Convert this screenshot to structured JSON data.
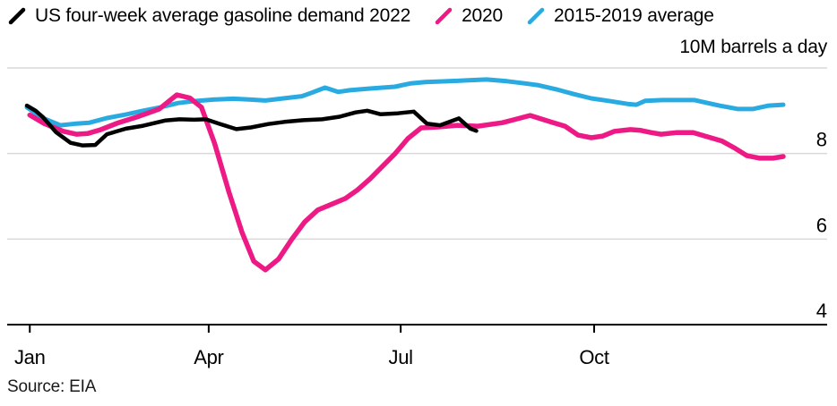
{
  "labels": {
    "unit": "10M barrels a day",
    "source": "Source: EIA"
  },
  "legend": {
    "items": [
      {
        "id": "demand-2022",
        "label": "US four-week average gasoline demand 2022",
        "color": "#000000"
      },
      {
        "id": "demand-2020",
        "label": "2020",
        "color": "#ed1a86"
      },
      {
        "id": "avg-2015-2019",
        "label": "2015-2019 average",
        "color": "#29abe2"
      }
    ]
  },
  "chart_data": {
    "type": "line",
    "title": "",
    "xlabel": "",
    "ylabel": "10M barrels a day",
    "x_unit": "weeks-of-year (0-52)",
    "ylim": [
      4,
      10
    ],
    "grid": true,
    "legend_position": "top",
    "gridline_values": [
      10,
      8,
      6
    ],
    "y_tick_labels": [
      8,
      6,
      4
    ],
    "baseline_value": 4,
    "x_ticks": [
      {
        "label": "Jan",
        "week": 0.2
      },
      {
        "label": "Apr",
        "week": 12.5
      },
      {
        "label": "Jul",
        "week": 25.7
      },
      {
        "label": "Oct",
        "week": 39.0
      }
    ],
    "colors": {
      "gridline": "#d9d9d9",
      "axis": "#000000",
      "tick_text": "#000000"
    },
    "series": [
      {
        "id": "avg-2015-2019",
        "name": "2015-2019 average",
        "color": "#29abe2",
        "stroke_width": 5,
        "points": [
          [
            0,
            9.08
          ],
          [
            1.1,
            8.83
          ],
          [
            2.3,
            8.66
          ],
          [
            3.4,
            8.7
          ],
          [
            4.3,
            8.72
          ],
          [
            5.5,
            8.83
          ],
          [
            6.8,
            8.91
          ],
          [
            8,
            9.0
          ],
          [
            9.2,
            9.08
          ],
          [
            10.4,
            9.18
          ],
          [
            11.4,
            9.22
          ],
          [
            12.8,
            9.26
          ],
          [
            14.2,
            9.28
          ],
          [
            15.4,
            9.26
          ],
          [
            16.4,
            9.24
          ],
          [
            17.9,
            9.3
          ],
          [
            18.9,
            9.34
          ],
          [
            19.5,
            9.41
          ],
          [
            20.5,
            9.54
          ],
          [
            21.4,
            9.44
          ],
          [
            22.2,
            9.48
          ],
          [
            23.6,
            9.52
          ],
          [
            25.3,
            9.56
          ],
          [
            26.4,
            9.64
          ],
          [
            27.4,
            9.67
          ],
          [
            29,
            9.69
          ],
          [
            30.2,
            9.71
          ],
          [
            31.6,
            9.73
          ],
          [
            33,
            9.69
          ],
          [
            34.2,
            9.64
          ],
          [
            35.1,
            9.6
          ],
          [
            36.4,
            9.5
          ],
          [
            37.6,
            9.39
          ],
          [
            38.8,
            9.29
          ],
          [
            40,
            9.23
          ],
          [
            41.3,
            9.16
          ],
          [
            41.9,
            9.14
          ],
          [
            42.5,
            9.23
          ],
          [
            43.7,
            9.25
          ],
          [
            45.9,
            9.25
          ],
          [
            47.6,
            9.12
          ],
          [
            48.9,
            9.04
          ],
          [
            49.9,
            9.04
          ],
          [
            51,
            9.12
          ],
          [
            52,
            9.14
          ]
        ]
      },
      {
        "id": "demand-2020",
        "name": "2020",
        "color": "#ed1a86",
        "stroke_width": 5.5,
        "points": [
          [
            0.2,
            8.9
          ],
          [
            1.2,
            8.7
          ],
          [
            2.5,
            8.52
          ],
          [
            3.4,
            8.45
          ],
          [
            4.2,
            8.47
          ],
          [
            5,
            8.55
          ],
          [
            6.3,
            8.72
          ],
          [
            7.7,
            8.87
          ],
          [
            9.1,
            9.04
          ],
          [
            10.3,
            9.37
          ],
          [
            11.2,
            9.3
          ],
          [
            12,
            9.08
          ],
          [
            12.9,
            8.24
          ],
          [
            13.9,
            7.09
          ],
          [
            14.8,
            6.15
          ],
          [
            15.6,
            5.48
          ],
          [
            16.4,
            5.28
          ],
          [
            17.3,
            5.53
          ],
          [
            18.2,
            5.99
          ],
          [
            19.1,
            6.4
          ],
          [
            20,
            6.68
          ],
          [
            21,
            6.82
          ],
          [
            21.9,
            6.95
          ],
          [
            22.7,
            7.14
          ],
          [
            23.6,
            7.41
          ],
          [
            24.5,
            7.72
          ],
          [
            25.3,
            7.99
          ],
          [
            26.2,
            8.35
          ],
          [
            27.1,
            8.6
          ],
          [
            28.3,
            8.62
          ],
          [
            29.6,
            8.66
          ],
          [
            31,
            8.64
          ],
          [
            32.7,
            8.72
          ],
          [
            33.6,
            8.8
          ],
          [
            34.6,
            8.89
          ],
          [
            36.2,
            8.72
          ],
          [
            37,
            8.64
          ],
          [
            37.9,
            8.43
          ],
          [
            38.8,
            8.37
          ],
          [
            39.6,
            8.41
          ],
          [
            40.4,
            8.52
          ],
          [
            41.5,
            8.56
          ],
          [
            42.2,
            8.54
          ],
          [
            42.9,
            8.49
          ],
          [
            43.6,
            8.45
          ],
          [
            44.7,
            8.49
          ],
          [
            45.8,
            8.49
          ],
          [
            46.8,
            8.39
          ],
          [
            47.8,
            8.29
          ],
          [
            48.7,
            8.12
          ],
          [
            49.5,
            7.95
          ],
          [
            50.4,
            7.89
          ],
          [
            51.3,
            7.89
          ],
          [
            52,
            7.93
          ]
        ]
      },
      {
        "id": "demand-2022",
        "name": "US four-week average gasoline demand 2022",
        "color": "#000000",
        "stroke_width": 4.5,
        "points": [
          [
            0,
            9.12
          ],
          [
            0.6,
            9.0
          ],
          [
            1.1,
            8.85
          ],
          [
            2,
            8.5
          ],
          [
            3,
            8.25
          ],
          [
            3.8,
            8.19
          ],
          [
            4.7,
            8.2
          ],
          [
            5.5,
            8.45
          ],
          [
            6.8,
            8.58
          ],
          [
            8,
            8.65
          ],
          [
            9.5,
            8.77
          ],
          [
            10.5,
            8.8
          ],
          [
            11.5,
            8.79
          ],
          [
            12.3,
            8.8
          ],
          [
            13.2,
            8.7
          ],
          [
            14.4,
            8.57
          ],
          [
            15.4,
            8.61
          ],
          [
            16.6,
            8.69
          ],
          [
            17.7,
            8.74
          ],
          [
            19,
            8.78
          ],
          [
            20.3,
            8.8
          ],
          [
            21.5,
            8.86
          ],
          [
            22.6,
            8.96
          ],
          [
            23.4,
            9.0
          ],
          [
            24.3,
            8.92
          ],
          [
            25.5,
            8.94
          ],
          [
            26.6,
            8.98
          ],
          [
            27.5,
            8.7
          ],
          [
            28.4,
            8.66
          ],
          [
            29.7,
            8.82
          ],
          [
            30.5,
            8.58
          ],
          [
            30.9,
            8.53
          ]
        ]
      }
    ]
  }
}
